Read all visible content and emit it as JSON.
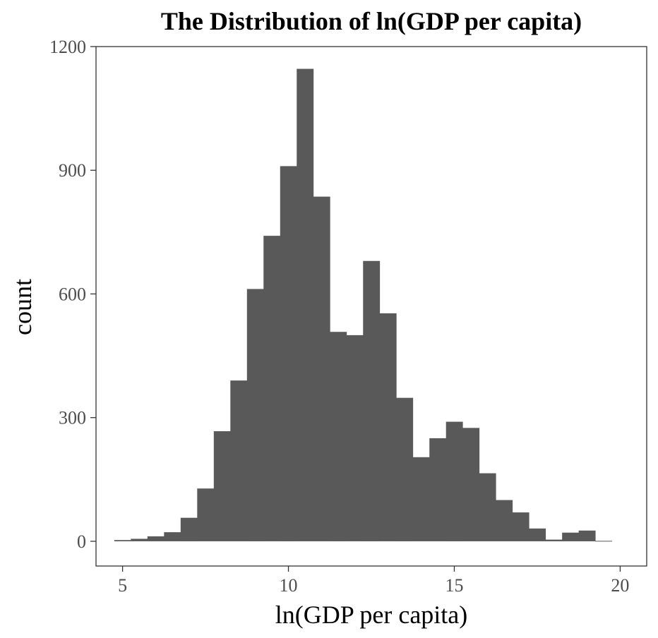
{
  "chart_data": {
    "type": "bar",
    "title": "The Distribution of ln(GDP per capita)",
    "xlabel": "ln(GDP per capita)",
    "ylabel": "count",
    "xlim": [
      4.2,
      20.8
    ],
    "ylim": [
      -60,
      1200
    ],
    "xticks": [
      5,
      10,
      15,
      20
    ],
    "yticks": [
      0,
      300,
      600,
      900,
      1200
    ],
    "x_tick_labels": [
      "5",
      "10",
      "15",
      "20"
    ],
    "y_tick_labels": [
      "0",
      "300",
      "600",
      "900",
      "1200"
    ],
    "bins": [
      {
        "x0": 4.75,
        "x1": 5.25,
        "count": 3
      },
      {
        "x0": 5.25,
        "x1": 5.75,
        "count": 6
      },
      {
        "x0": 5.75,
        "x1": 6.25,
        "count": 12
      },
      {
        "x0": 6.25,
        "x1": 6.75,
        "count": 22
      },
      {
        "x0": 6.75,
        "x1": 7.25,
        "count": 57
      },
      {
        "x0": 7.25,
        "x1": 7.75,
        "count": 128
      },
      {
        "x0": 7.75,
        "x1": 8.25,
        "count": 267
      },
      {
        "x0": 8.25,
        "x1": 8.75,
        "count": 390
      },
      {
        "x0": 8.75,
        "x1": 9.25,
        "count": 612
      },
      {
        "x0": 9.25,
        "x1": 9.75,
        "count": 741
      },
      {
        "x0": 9.75,
        "x1": 10.25,
        "count": 910
      },
      {
        "x0": 10.25,
        "x1": 10.75,
        "count": 1146
      },
      {
        "x0": 10.75,
        "x1": 11.25,
        "count": 836
      },
      {
        "x0": 11.25,
        "x1": 11.75,
        "count": 508
      },
      {
        "x0": 11.75,
        "x1": 12.25,
        "count": 500
      },
      {
        "x0": 12.25,
        "x1": 12.75,
        "count": 680
      },
      {
        "x0": 12.75,
        "x1": 13.25,
        "count": 553
      },
      {
        "x0": 13.25,
        "x1": 13.75,
        "count": 348
      },
      {
        "x0": 13.75,
        "x1": 14.25,
        "count": 204
      },
      {
        "x0": 14.25,
        "x1": 14.75,
        "count": 250
      },
      {
        "x0": 14.75,
        "x1": 15.25,
        "count": 290
      },
      {
        "x0": 15.25,
        "x1": 15.75,
        "count": 275
      },
      {
        "x0": 15.75,
        "x1": 16.25,
        "count": 165
      },
      {
        "x0": 16.25,
        "x1": 16.75,
        "count": 100
      },
      {
        "x0": 16.75,
        "x1": 17.25,
        "count": 70
      },
      {
        "x0": 17.25,
        "x1": 17.75,
        "count": 31
      },
      {
        "x0": 17.75,
        "x1": 18.25,
        "count": 4
      },
      {
        "x0": 18.25,
        "x1": 18.75,
        "count": 21
      },
      {
        "x0": 18.75,
        "x1": 19.25,
        "count": 26
      },
      {
        "x0": 19.25,
        "x1": 19.75,
        "count": 1
      }
    ],
    "bar_color": "#595959",
    "grid": false
  }
}
